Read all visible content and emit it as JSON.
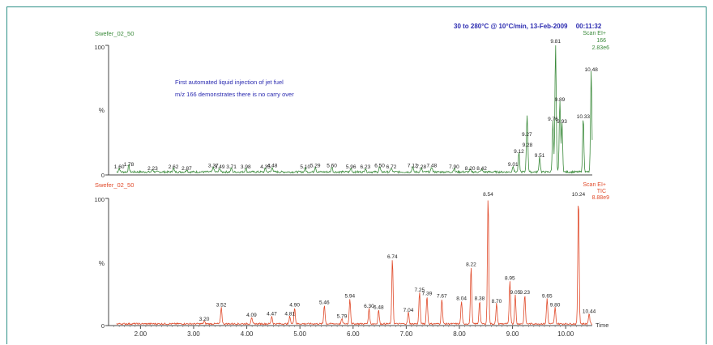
{
  "header": {
    "method": "30 to 280°C @ 10°C/min,",
    "date": "13-Feb-2009",
    "time": "00:11:32"
  },
  "chart_data": [
    {
      "type": "line",
      "sample_label": "Swefer_02_50",
      "scan_label": "Scan EI+",
      "mz_label": "166",
      "max_intensity": "2.83e6",
      "ylabel": "%",
      "y_tick_labels": [
        "100",
        "0"
      ],
      "ylim": [
        0,
        100
      ],
      "xlim": [
        1.4,
        10.5
      ],
      "color": "#3a8a3a",
      "annotations": [
        "First automated liquid injection of jet fuel",
        "m/z 166 demonstrates there is no carry over"
      ],
      "annotation_color": "#2a2ab0",
      "peaks": [
        {
          "x": 1.6,
          "y": 3,
          "label": "1.60"
        },
        {
          "x": 1.78,
          "y": 5,
          "label": "1.78"
        },
        {
          "x": 2.23,
          "y": 2,
          "label": "2.23"
        },
        {
          "x": 2.62,
          "y": 3,
          "label": "2.62"
        },
        {
          "x": 2.87,
          "y": 2,
          "label": "2.87"
        },
        {
          "x": 3.37,
          "y": 4,
          "label": "3.37"
        },
        {
          "x": 3.49,
          "y": 3,
          "label": "3.49"
        },
        {
          "x": 3.71,
          "y": 3,
          "label": "3.71"
        },
        {
          "x": 3.98,
          "y": 3,
          "label": "3.98"
        },
        {
          "x": 4.35,
          "y": 3,
          "label": "4.35"
        },
        {
          "x": 4.48,
          "y": 4,
          "label": "4.48"
        },
        {
          "x": 5.1,
          "y": 3,
          "label": "5.10"
        },
        {
          "x": 5.29,
          "y": 4,
          "label": "5.29"
        },
        {
          "x": 5.6,
          "y": 4,
          "label": "5.60"
        },
        {
          "x": 5.96,
          "y": 3,
          "label": "5.96"
        },
        {
          "x": 6.23,
          "y": 3,
          "label": "6.23"
        },
        {
          "x": 6.5,
          "y": 4,
          "label": "6.50"
        },
        {
          "x": 6.72,
          "y": 3,
          "label": "6.72"
        },
        {
          "x": 7.12,
          "y": 4,
          "label": "7.12"
        },
        {
          "x": 7.28,
          "y": 3,
          "label": "7.28"
        },
        {
          "x": 7.48,
          "y": 4,
          "label": "7.48"
        },
        {
          "x": 7.9,
          "y": 3,
          "label": "7.90"
        },
        {
          "x": 8.2,
          "y": 2,
          "label": "8.20"
        },
        {
          "x": 8.42,
          "y": 2,
          "label": "8.42"
        },
        {
          "x": 9.01,
          "y": 5,
          "label": "9.01"
        },
        {
          "x": 9.12,
          "y": 15,
          "label": "9.12"
        },
        {
          "x": 9.27,
          "y": 28,
          "label": "9.27"
        },
        {
          "x": 9.28,
          "y": 20,
          "label": "9.28"
        },
        {
          "x": 9.51,
          "y": 12,
          "label": "9.51"
        },
        {
          "x": 9.76,
          "y": 40,
          "label": "9.76"
        },
        {
          "x": 9.81,
          "y": 100,
          "label": "9.81"
        },
        {
          "x": 9.89,
          "y": 55,
          "label": "9.89"
        },
        {
          "x": 9.93,
          "y": 38,
          "label": "9.93"
        },
        {
          "x": 10.33,
          "y": 42,
          "label": "10.33"
        },
        {
          "x": 10.48,
          "y": 78,
          "label": "10.48"
        }
      ]
    },
    {
      "type": "line",
      "sample_label": "Swefer_02_50",
      "scan_label": "Scan EI+",
      "mz_label": "TIC",
      "max_intensity": "8.88e9",
      "ylabel": "%",
      "y_tick_labels": [
        "100",
        "0"
      ],
      "ylim": [
        0,
        100
      ],
      "xlim": [
        1.4,
        10.5
      ],
      "color": "#e04a2a",
      "xlabel": "Time",
      "x_ticks": [
        "2.00",
        "3.00",
        "4.00",
        "5.00",
        "6.00",
        "7.00",
        "8.00",
        "9.00",
        "10.00"
      ],
      "peaks": [
        {
          "x": 3.2,
          "y": 2,
          "label": "3.20"
        },
        {
          "x": 3.52,
          "y": 13,
          "label": "3.52"
        },
        {
          "x": 4.09,
          "y": 5,
          "label": "4.09"
        },
        {
          "x": 4.47,
          "y": 6,
          "label": "4.47"
        },
        {
          "x": 4.81,
          "y": 6,
          "label": "4.81"
        },
        {
          "x": 4.9,
          "y": 13,
          "label": "4.90"
        },
        {
          "x": 5.46,
          "y": 15,
          "label": "5.46"
        },
        {
          "x": 5.79,
          "y": 4,
          "label": "5.79"
        },
        {
          "x": 5.94,
          "y": 20,
          "label": "5.94"
        },
        {
          "x": 6.3,
          "y": 12,
          "label": "6.30"
        },
        {
          "x": 6.48,
          "y": 11,
          "label": "6.48"
        },
        {
          "x": 6.74,
          "y": 51,
          "label": "6.74"
        },
        {
          "x": 7.04,
          "y": 9,
          "label": "7.04"
        },
        {
          "x": 7.25,
          "y": 25,
          "label": "7.25"
        },
        {
          "x": 7.39,
          "y": 22,
          "label": "7.39"
        },
        {
          "x": 7.67,
          "y": 20,
          "label": "7.67"
        },
        {
          "x": 8.04,
          "y": 18,
          "label": "8.04"
        },
        {
          "x": 8.22,
          "y": 45,
          "label": "8.22"
        },
        {
          "x": 8.38,
          "y": 18,
          "label": "8.38"
        },
        {
          "x": 8.54,
          "y": 100,
          "label": "8.54"
        },
        {
          "x": 8.7,
          "y": 16,
          "label": "8.70"
        },
        {
          "x": 8.95,
          "y": 34,
          "label": "8.95"
        },
        {
          "x": 9.05,
          "y": 23,
          "label": "9.05"
        },
        {
          "x": 9.23,
          "y": 23,
          "label": "9.23"
        },
        {
          "x": 9.65,
          "y": 20,
          "label": "9.65"
        },
        {
          "x": 9.8,
          "y": 13,
          "label": "9.80"
        },
        {
          "x": 10.24,
          "y": 100,
          "label": "10.24"
        },
        {
          "x": 10.44,
          "y": 8,
          "label": "10.44"
        }
      ]
    }
  ]
}
